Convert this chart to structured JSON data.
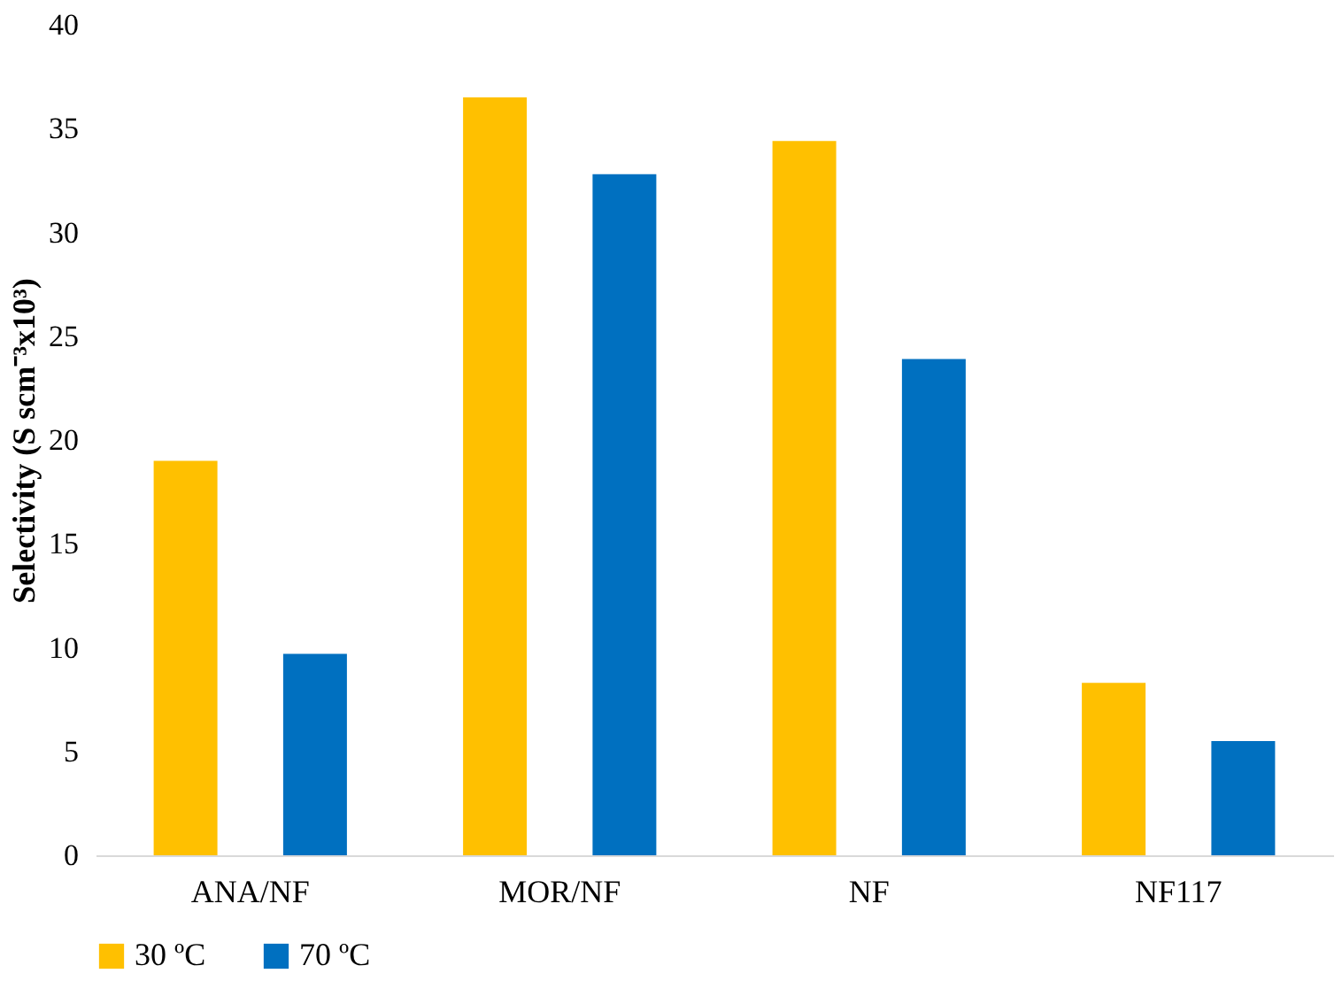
{
  "chart_data": {
    "type": "bar",
    "ylabel": "Selectivity (S scm⁻³x10³)",
    "categories": [
      "ANA/NF",
      "MOR/NF",
      "NF",
      "NF117"
    ],
    "series": [
      {
        "name": "30 ºC",
        "color": "#ffc000",
        "values": [
          19.0,
          36.5,
          34.4,
          8.3
        ]
      },
      {
        "name": "70 ºC",
        "color": "#0070c0",
        "values": [
          9.7,
          32.8,
          23.9,
          5.5
        ]
      }
    ],
    "ylim": [
      0,
      40
    ],
    "yticks": [
      0,
      5,
      10,
      15,
      20,
      25,
      30,
      35,
      40
    ],
    "grid": false,
    "legend": "bottom"
  }
}
